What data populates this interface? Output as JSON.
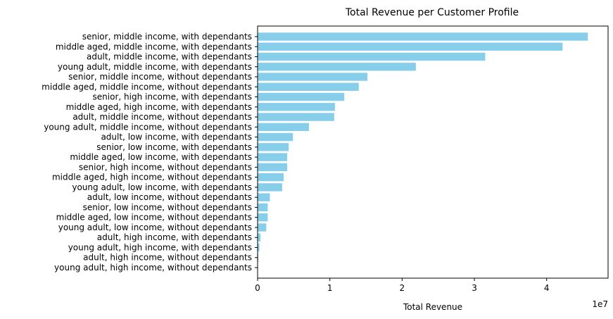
{
  "chart_data": {
    "type": "bar",
    "orientation": "horizontal",
    "title": "Total Revenue per Customer Profile",
    "xlabel": "Total Revenue",
    "ylabel": "",
    "x_offset_label": "1e7",
    "xlim": [
      0,
      48500000
    ],
    "xticks": [
      0,
      10000000,
      20000000,
      30000000,
      40000000
    ],
    "xtick_labels": [
      "0",
      "1",
      "2",
      "3",
      "4"
    ],
    "bar_color": "#87CEEB",
    "grid": false,
    "categories": [
      "senior, middle income, with dependants",
      "middle aged, middle income, with dependants",
      "adult, middle income, with dependants",
      "young adult, middle income, with dependants",
      "senior, middle income, without dependants",
      "middle aged, middle income, without dependants",
      "senior, high income, with dependants",
      "middle aged, high income, with dependants",
      "adult, middle income, without dependants",
      "young adult, middle income, without dependants",
      "adult, low income, with dependants",
      "senior, low income, with dependants",
      "middle aged, low income, with dependants",
      "senior, high income, without dependants",
      "middle aged, high income, without dependants",
      "young adult, low income, with dependants",
      "adult, low income, without dependants",
      "senior, low income, without dependants",
      "middle aged, low income, without dependants",
      "young adult, low income, without dependants",
      "adult, high income, with dependants",
      "young adult, high income, with dependants",
      "adult, high income, without dependants",
      "young adult, high income, without dependants"
    ],
    "values": [
      45700000,
      42200000,
      31500000,
      21900000,
      15200000,
      14000000,
      12000000,
      10700000,
      10600000,
      7100000,
      4900000,
      4300000,
      4100000,
      4100000,
      3600000,
      3400000,
      1700000,
      1400000,
      1400000,
      1200000,
      400000,
      250000,
      100000,
      50000
    ]
  }
}
